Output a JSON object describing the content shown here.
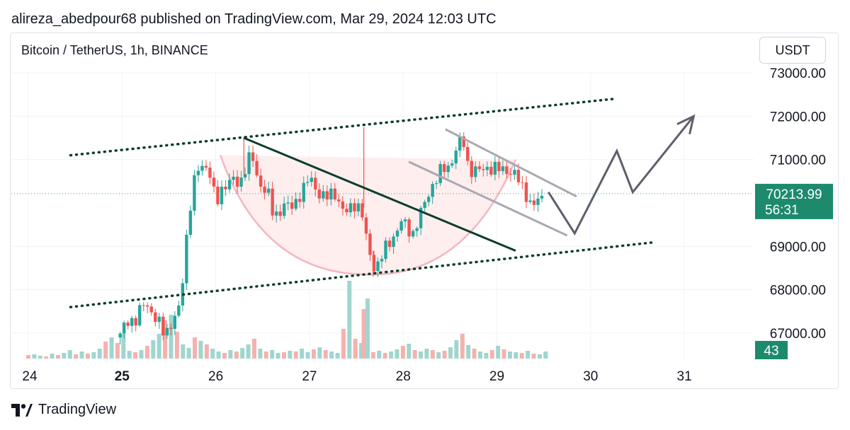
{
  "header": {
    "published_line": "alireza_abedpour68 published on TradingView.com, Mar 29, 2024 12:03 UTC"
  },
  "symbol_line": "Bitcoin / TetherUS, 1h, BINANCE",
  "currency_button": "USDT",
  "footer": {
    "brand": "TradingView",
    "logo_icon": "tradingview-logo-icon"
  },
  "colors": {
    "up": "#26a69a",
    "down": "#ef5350",
    "volume_up": "#9fd6cf",
    "volume_down": "#f5b1ae",
    "channel": "#0b3d2c",
    "wedge": "#a9a9b3",
    "cup": "#f4b6c2",
    "projection": "#5d606b"
  },
  "chart_data": {
    "type": "candlestick",
    "pair": "Bitcoin / TetherUS",
    "timeframe": "1h",
    "exchange": "BINANCE",
    "x_ticks": [
      {
        "day": 24,
        "label": "24",
        "bold": false
      },
      {
        "day": 25,
        "label": "25",
        "bold": true
      },
      {
        "day": 26,
        "label": "26",
        "bold": false
      },
      {
        "day": 27,
        "label": "27",
        "bold": false
      },
      {
        "day": 28,
        "label": "28",
        "bold": false
      },
      {
        "day": 29,
        "label": "29",
        "bold": false
      },
      {
        "day": 30,
        "label": "30",
        "bold": false
      },
      {
        "day": 31,
        "label": "31",
        "bold": false
      }
    ],
    "y_ticks": [
      "73000.00",
      "72000.00",
      "71000.00",
      "69000.00",
      "68000.00",
      "67000.00"
    ],
    "y_tick_values": [
      73000,
      72000,
      71000,
      69000,
      68000,
      67000
    ],
    "ylim": [
      66300,
      73400
    ],
    "xlim": [
      23.8,
      31.5
    ],
    "current_price": {
      "price": 70213.99,
      "label": "70213.99",
      "countdown": "56:31"
    },
    "volume_badge": "43",
    "price_path": [
      [
        24.98,
        66900
      ],
      [
        25.05,
        67350
      ],
      [
        25.15,
        67250
      ],
      [
        25.25,
        67800
      ],
      [
        25.35,
        67300
      ],
      [
        25.45,
        67050
      ],
      [
        25.55,
        67250
      ],
      [
        25.62,
        67600
      ],
      [
        25.68,
        69100
      ],
      [
        25.75,
        70300
      ],
      [
        25.82,
        70800
      ],
      [
        25.88,
        70950
      ],
      [
        25.95,
        70600
      ],
      [
        26.0,
        69900
      ],
      [
        26.08,
        70450
      ],
      [
        26.18,
        70500
      ],
      [
        26.25,
        70400
      ],
      [
        26.32,
        70900
      ],
      [
        26.38,
        71100
      ],
      [
        26.45,
        70500
      ],
      [
        26.55,
        70300
      ],
      [
        26.62,
        69600
      ],
      [
        26.72,
        70000
      ],
      [
        26.82,
        69850
      ],
      [
        26.9,
        70250
      ],
      [
        27.0,
        70550
      ],
      [
        27.08,
        70300
      ],
      [
        27.18,
        70100
      ],
      [
        27.28,
        70250
      ],
      [
        27.38,
        69700
      ],
      [
        27.48,
        70000
      ],
      [
        27.55,
        69900
      ],
      [
        27.62,
        68950
      ],
      [
        27.7,
        68500
      ],
      [
        27.78,
        68800
      ],
      [
        27.88,
        69200
      ],
      [
        27.98,
        69550
      ],
      [
        28.1,
        69300
      ],
      [
        28.2,
        69800
      ],
      [
        28.3,
        70400
      ],
      [
        28.4,
        70700
      ],
      [
        28.5,
        70900
      ],
      [
        28.58,
        71300
      ],
      [
        28.64,
        71450
      ],
      [
        28.7,
        70800
      ],
      [
        28.8,
        70700
      ],
      [
        28.9,
        70850
      ],
      [
        29.0,
        70750
      ],
      [
        29.1,
        70800
      ],
      [
        29.2,
        70600
      ],
      [
        29.3,
        70300
      ],
      [
        29.38,
        69850
      ],
      [
        29.45,
        70100
      ],
      [
        29.52,
        70214
      ]
    ],
    "volume": {
      "values": [
        5,
        6,
        4,
        3,
        7,
        5,
        8,
        12,
        6,
        10,
        7,
        9,
        14,
        24,
        30,
        22,
        35,
        11,
        9,
        12,
        18,
        26,
        35,
        54,
        62,
        38,
        20,
        15,
        30,
        25,
        20,
        14,
        10,
        8,
        12,
        10,
        15,
        20,
        28,
        14,
        10,
        12,
        8,
        9,
        11,
        10,
        14,
        9,
        13,
        16,
        12,
        10,
        8,
        42,
        110,
        28,
        22,
        14,
        9,
        11,
        8,
        10,
        13,
        18,
        21,
        12,
        10,
        14,
        12,
        9,
        11,
        16,
        26,
        35,
        19,
        14,
        10,
        8,
        12,
        18,
        13,
        10,
        9,
        8,
        11,
        7,
        6,
        10
      ],
      "max": 110,
      "spikes": [
        {
          "day": 27.58,
          "value": 70,
          "up": false
        },
        {
          "day": 27.62,
          "value": 85,
          "up": true
        }
      ]
    },
    "drawings": {
      "upper_channel": [
        [
          24.45,
          71100
        ],
        [
          30.25,
          72400
        ]
      ],
      "lower_channel": [
        [
          24.45,
          67600
        ],
        [
          30.7,
          69100
        ]
      ],
      "descending_trendline": [
        [
          26.3,
          71500
        ],
        [
          29.2,
          68900
        ]
      ],
      "wedge_top": [
        [
          28.45,
          71700
        ],
        [
          29.85,
          70150
        ]
      ],
      "wedge_bottom": [
        [
          28.06,
          70950
        ],
        [
          29.75,
          69250
        ]
      ],
      "cup_left": [
        26.05,
        71100
      ],
      "cup_bottom": [
        27.65,
        68350
      ],
      "cup_right": [
        29.2,
        71000
      ],
      "projection_path": [
        [
          29.55,
          70250
        ],
        [
          29.83,
          69300
        ],
        [
          30.28,
          71200
        ],
        [
          30.45,
          70250
        ],
        [
          31.1,
          72000
        ]
      ]
    }
  }
}
